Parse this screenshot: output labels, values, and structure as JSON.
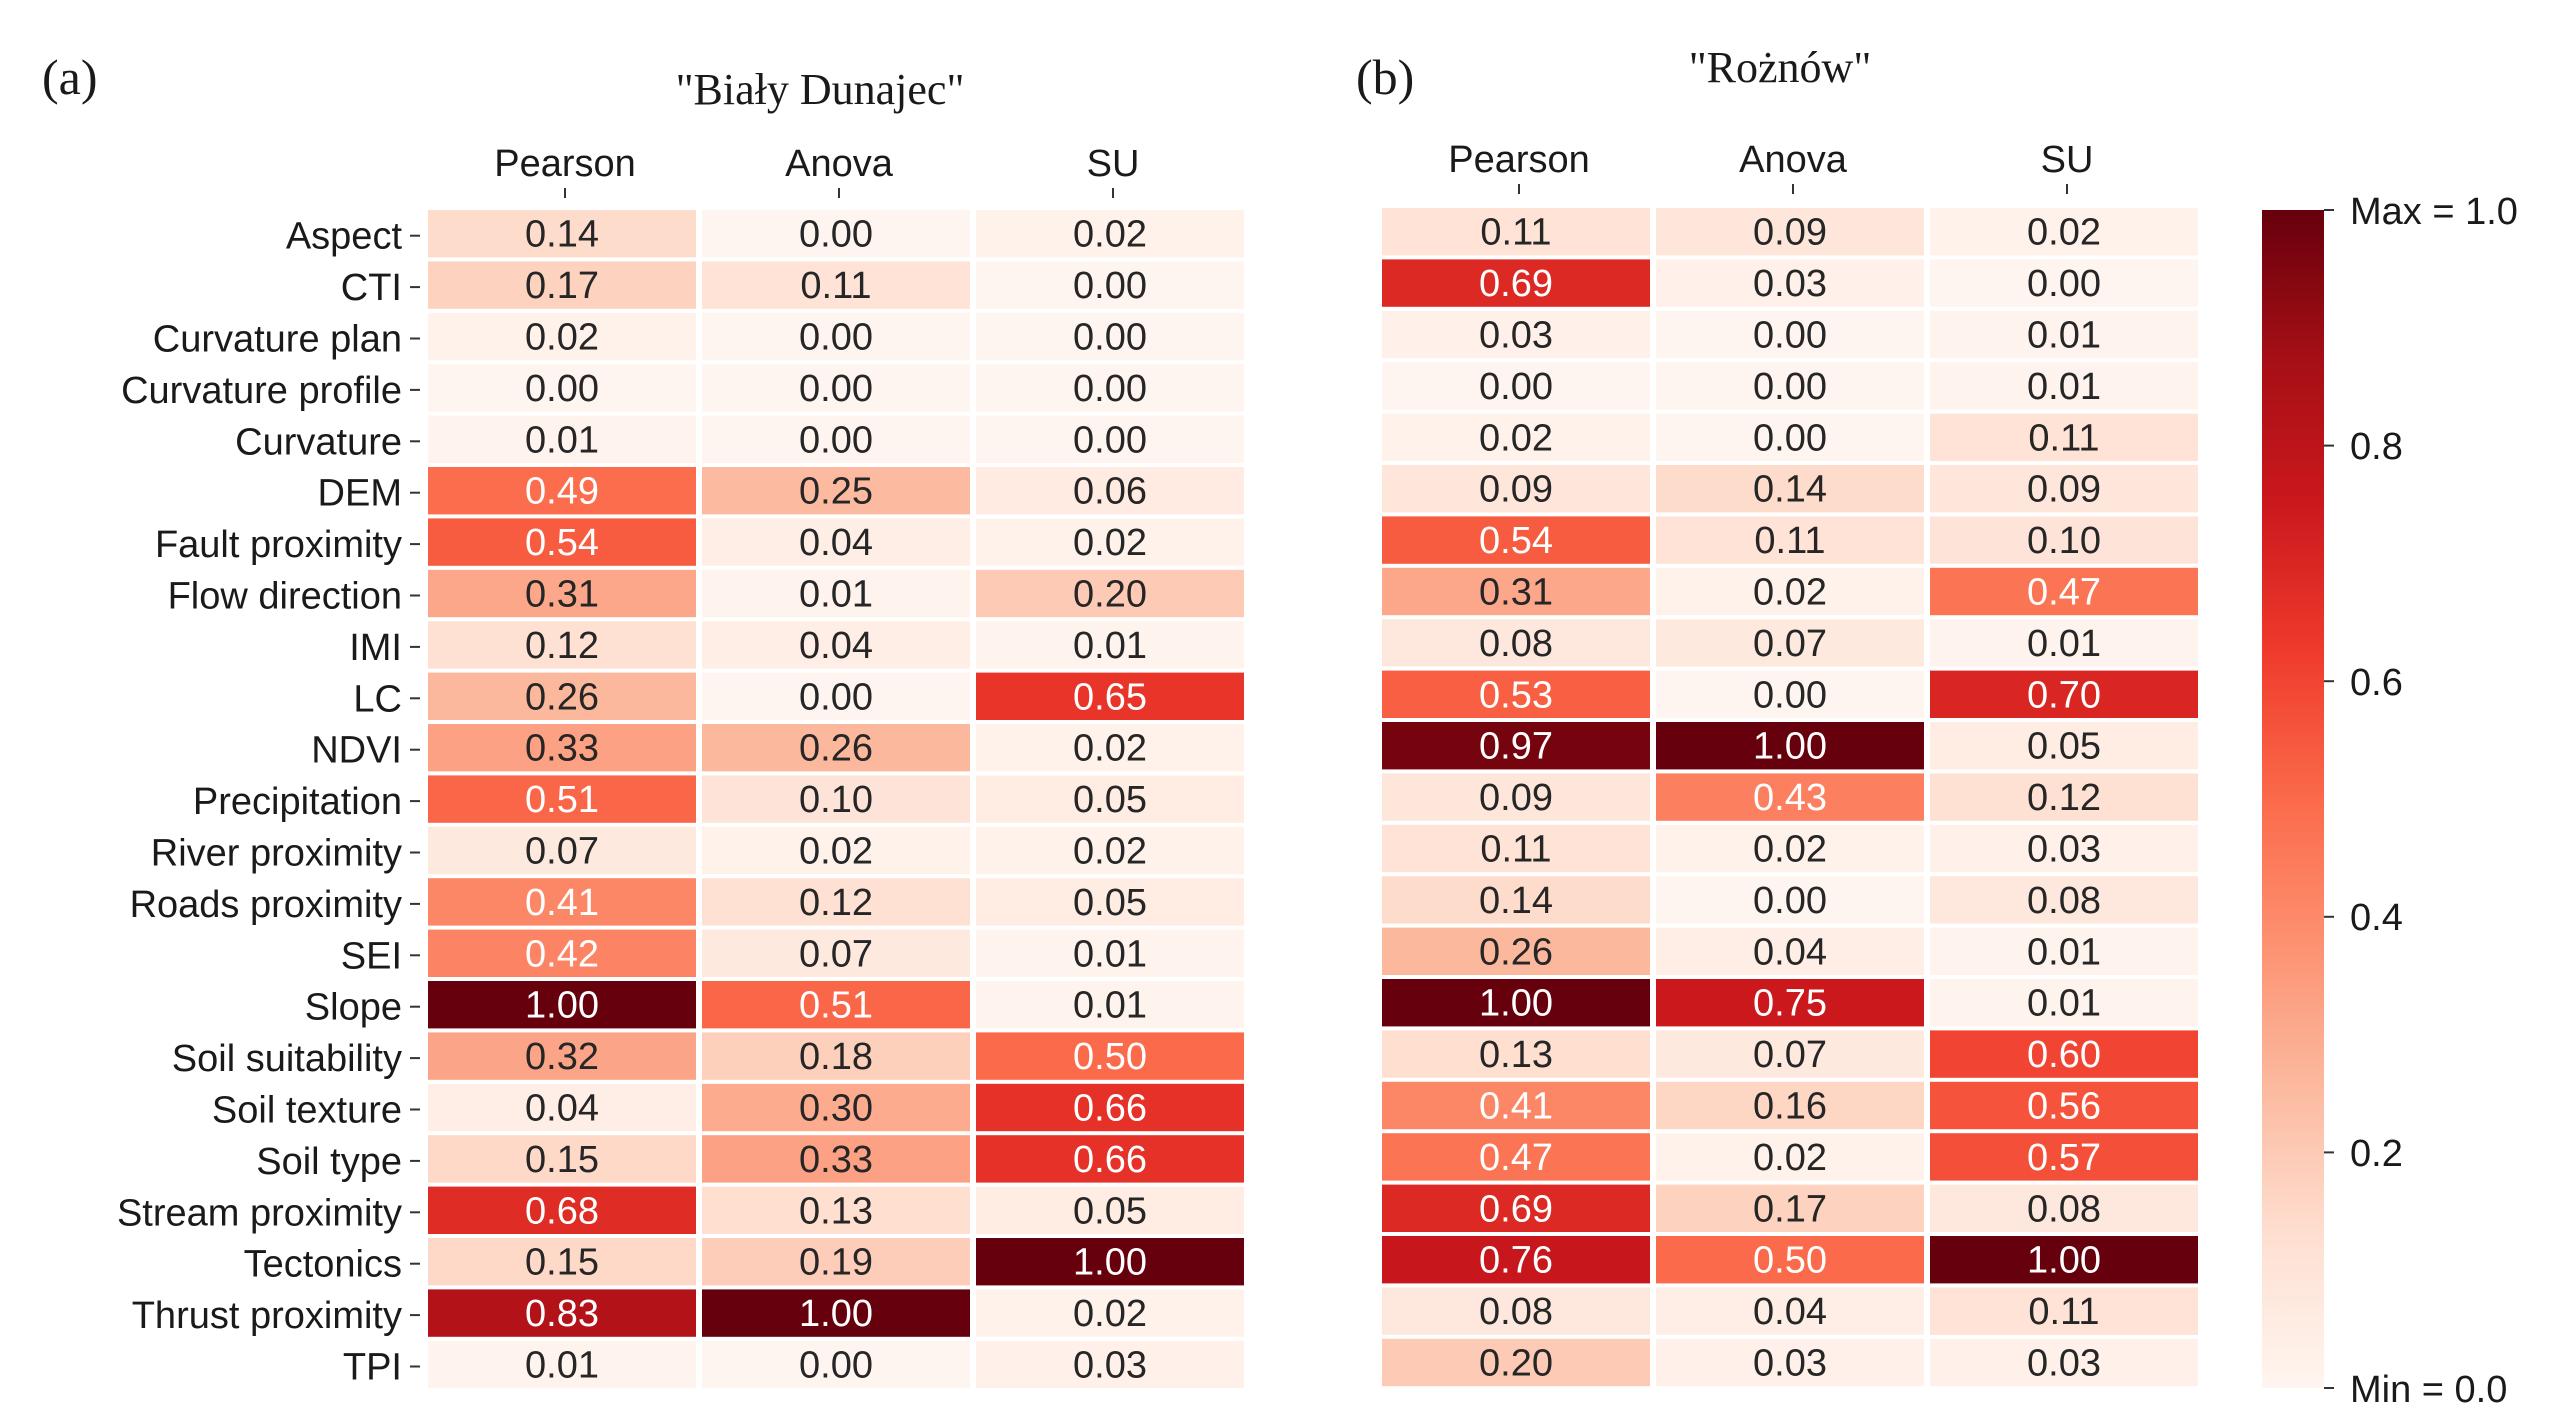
{
  "chart_data": [
    {
      "type": "heatmap",
      "panel": "(a)",
      "title": "\"Biały Dunajec\"",
      "columns": [
        "Pearson",
        "Anova",
        "SU"
      ],
      "rows": [
        "Aspect",
        "CTI",
        "Curvature plan",
        "Curvature profile",
        "Curvature",
        "DEM",
        "Fault proximity",
        "Flow direction",
        "IMI",
        "LC",
        "NDVI",
        "Precipitation",
        "River proximity",
        "Roads proximity",
        "SEI",
        "Slope",
        "Soil suitability",
        "Soil texture",
        "Soil type",
        "Stream proximity",
        "Tectonics",
        "Thrust proximity",
        "TPI"
      ],
      "values": [
        [
          "0.14",
          "0.00",
          "0.02"
        ],
        [
          "0.17",
          "0.11",
          "0.00"
        ],
        [
          "0.02",
          "0.00",
          "0.00"
        ],
        [
          "0.00",
          "0.00",
          "0.00"
        ],
        [
          "0.01",
          "0.00",
          "0.00"
        ],
        [
          "0.49",
          "0.25",
          "0.06"
        ],
        [
          "0.54",
          "0.04",
          "0.02"
        ],
        [
          "0.31",
          "0.01",
          "0.20"
        ],
        [
          "0.12",
          "0.04",
          "0.01"
        ],
        [
          "0.26",
          "0.00",
          "0.65"
        ],
        [
          "0.33",
          "0.26",
          "0.02"
        ],
        [
          "0.51",
          "0.10",
          "0.05"
        ],
        [
          "0.07",
          "0.02",
          "0.02"
        ],
        [
          "0.41",
          "0.12",
          "0.05"
        ],
        [
          "0.42",
          "0.07",
          "0.01"
        ],
        [
          "1.00",
          "0.51",
          "0.01"
        ],
        [
          "0.32",
          "0.18",
          "0.50"
        ],
        [
          "0.04",
          "0.30",
          "0.66"
        ],
        [
          "0.15",
          "0.33",
          "0.66"
        ],
        [
          "0.68",
          "0.13",
          "0.05"
        ],
        [
          "0.15",
          "0.19",
          "1.00"
        ],
        [
          "0.83",
          "1.00",
          "0.02"
        ],
        [
          "0.01",
          "0.00",
          "0.03"
        ]
      ]
    },
    {
      "type": "heatmap",
      "panel": "(b)",
      "title": "\"Rożnów\"",
      "columns": [
        "Pearson",
        "Anova",
        "SU"
      ],
      "values": [
        [
          "0.11",
          "0.09",
          "0.02"
        ],
        [
          "0.69",
          "0.03",
          "0.00"
        ],
        [
          "0.03",
          "0.00",
          "0.01"
        ],
        [
          "0.00",
          "0.00",
          "0.01"
        ],
        [
          "0.02",
          "0.00",
          "0.11"
        ],
        [
          "0.09",
          "0.14",
          "0.09"
        ],
        [
          "0.54",
          "0.11",
          "0.10"
        ],
        [
          "0.31",
          "0.02",
          "0.47"
        ],
        [
          "0.08",
          "0.07",
          "0.01"
        ],
        [
          "0.53",
          "0.00",
          "0.70"
        ],
        [
          "0.97",
          "1.00",
          "0.05"
        ],
        [
          "0.09",
          "0.43",
          "0.12"
        ],
        [
          "0.11",
          "0.02",
          "0.03"
        ],
        [
          "0.14",
          "0.00",
          "0.08"
        ],
        [
          "0.26",
          "0.04",
          "0.01"
        ],
        [
          "1.00",
          "0.75",
          "0.01"
        ],
        [
          "0.13",
          "0.07",
          "0.60"
        ],
        [
          "0.41",
          "0.16",
          "0.56"
        ],
        [
          "0.47",
          "0.02",
          "0.57"
        ],
        [
          "0.69",
          "0.17",
          "0.08"
        ],
        [
          "0.76",
          "0.50",
          "1.00"
        ],
        [
          "0.08",
          "0.04",
          "0.11"
        ],
        [
          "0.20",
          "0.03",
          "0.03"
        ]
      ]
    }
  ],
  "colorbar": {
    "colormap": "Reds",
    "range": [
      0,
      1
    ],
    "max_label": "Max = 1.0",
    "min_label": "Min = 0.0",
    "ticks": [
      "0.8",
      "0.6",
      "0.4",
      "0.2"
    ]
  }
}
